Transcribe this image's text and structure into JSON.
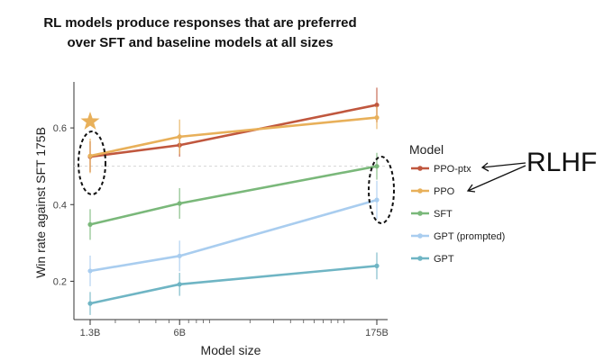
{
  "chart_data": {
    "type": "line",
    "title_lines": [
      "RL models produce responses that are preferred",
      "over SFT and baseline models at all sizes"
    ],
    "xlabel": "Model size",
    "ylabel": "Win rate against SFT 175B",
    "x_scale": "log",
    "x_params_billions": [
      1.3,
      6,
      175
    ],
    "x_tick_labels": [
      "1.3B",
      "6B",
      "175B"
    ],
    "ylim": [
      0.1,
      0.72
    ],
    "y_ticks": [
      0.2,
      0.4,
      0.6
    ],
    "y_tick_labels": [
      "0.2",
      "0.4",
      "0.6"
    ],
    "reference_line_y": 0.5,
    "legend_title": "Model",
    "annotation": "RLHF",
    "series": [
      {
        "name": "PPO-ptx",
        "color": "#c0573e",
        "values": [
          0.525,
          0.555,
          0.66
        ],
        "err": [
          0.04,
          0.03,
          0.045
        ]
      },
      {
        "name": "PPO",
        "color": "#e8b05a",
        "values": [
          0.527,
          0.577,
          0.627
        ],
        "err": [
          0.045,
          0.045,
          0.03
        ]
      },
      {
        "name": "SFT",
        "color": "#7ab87a",
        "values": [
          0.348,
          0.403,
          0.5
        ],
        "err": [
          0.04,
          0.04,
          0.035
        ]
      },
      {
        "name": "GPT (prompted)",
        "color": "#a9cdef",
        "values": [
          0.227,
          0.266,
          0.412
        ],
        "err": [
          0.04,
          0.04,
          0.05
        ]
      },
      {
        "name": "GPT",
        "color": "#6fb5c4",
        "values": [
          0.142,
          0.192,
          0.24
        ],
        "err": [
          0.03,
          0.03,
          0.035
        ]
      }
    ]
  }
}
